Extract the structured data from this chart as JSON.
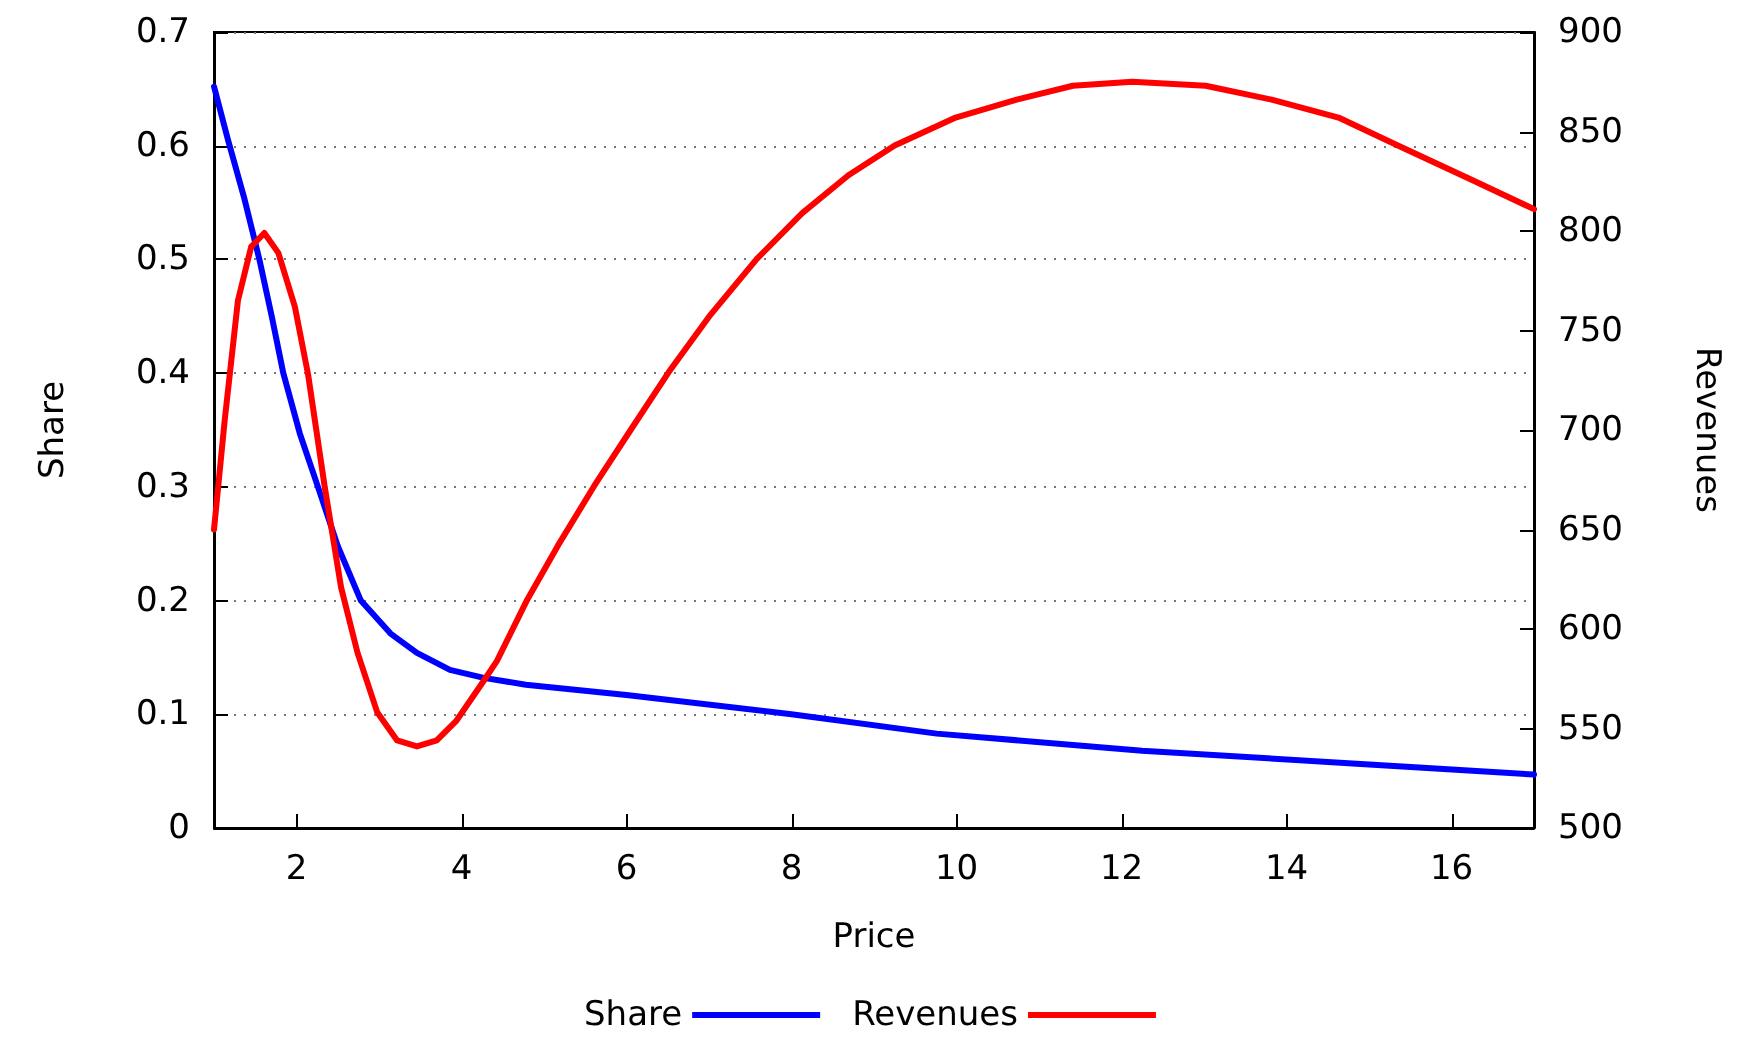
{
  "chart_data": {
    "type": "line",
    "xlabel": "Price",
    "ylabel": "Share",
    "y2label": "Revenues",
    "xlim": [
      1,
      17
    ],
    "xticks": [
      2,
      4,
      6,
      8,
      10,
      12,
      14,
      16
    ],
    "ylim": [
      0,
      0.7
    ],
    "yticks": [
      0,
      0.1,
      0.2,
      0.3,
      0.4,
      0.5,
      0.6,
      0.7
    ],
    "y2lim": [
      500,
      900
    ],
    "y2ticks": [
      500,
      550,
      600,
      650,
      700,
      750,
      800,
      850,
      900
    ],
    "grid": "y",
    "legend": "bottom",
    "marker": "none",
    "line_style": "solid",
    "series": [
      {
        "name": "Share",
        "color": "#0000ff",
        "x": [
          1,
          1.17,
          1.37,
          1.55,
          1.7,
          1.84,
          2.04,
          2.26,
          2.5,
          2.78,
          3.14,
          3.46,
          3.86,
          4.27,
          4.78,
          6,
          8,
          9.76,
          12.25,
          14.75,
          17
        ],
        "values": [
          0.652,
          0.605,
          0.553,
          0.5,
          0.45,
          0.4,
          0.347,
          0.3,
          0.248,
          0.2,
          0.171,
          0.154,
          0.139,
          0.132,
          0.126,
          0.117,
          0.1,
          0.083,
          0.068,
          0.057,
          0.047
        ]
      },
      {
        "name": "Revenues",
        "color": "#ff0000",
        "axis": "y2",
        "x": [
          1,
          1.13,
          1.29,
          1.45,
          1.61,
          1.78,
          1.98,
          2.14,
          2.34,
          2.54,
          2.74,
          2.98,
          3.22,
          3.46,
          3.7,
          3.94,
          4.27,
          4.43,
          4.8,
          5.17,
          5.61,
          6.05,
          6.51,
          7.02,
          7.58,
          8.13,
          8.69,
          9.25,
          9.99,
          10.73,
          11.41,
          12.13,
          13.02,
          13.82,
          14.63,
          15.35,
          16.23,
          17
        ],
        "values": [
          650,
          705,
          765,
          792,
          799,
          789,
          762,
          728,
          672,
          621,
          588,
          558,
          544,
          541,
          544,
          554,
          574,
          584,
          615,
          642,
          672,
          700,
          729,
          758,
          786,
          809,
          828,
          843,
          857,
          866,
          873,
          875,
          873,
          866,
          857,
          843,
          826,
          811
        ]
      }
    ]
  }
}
